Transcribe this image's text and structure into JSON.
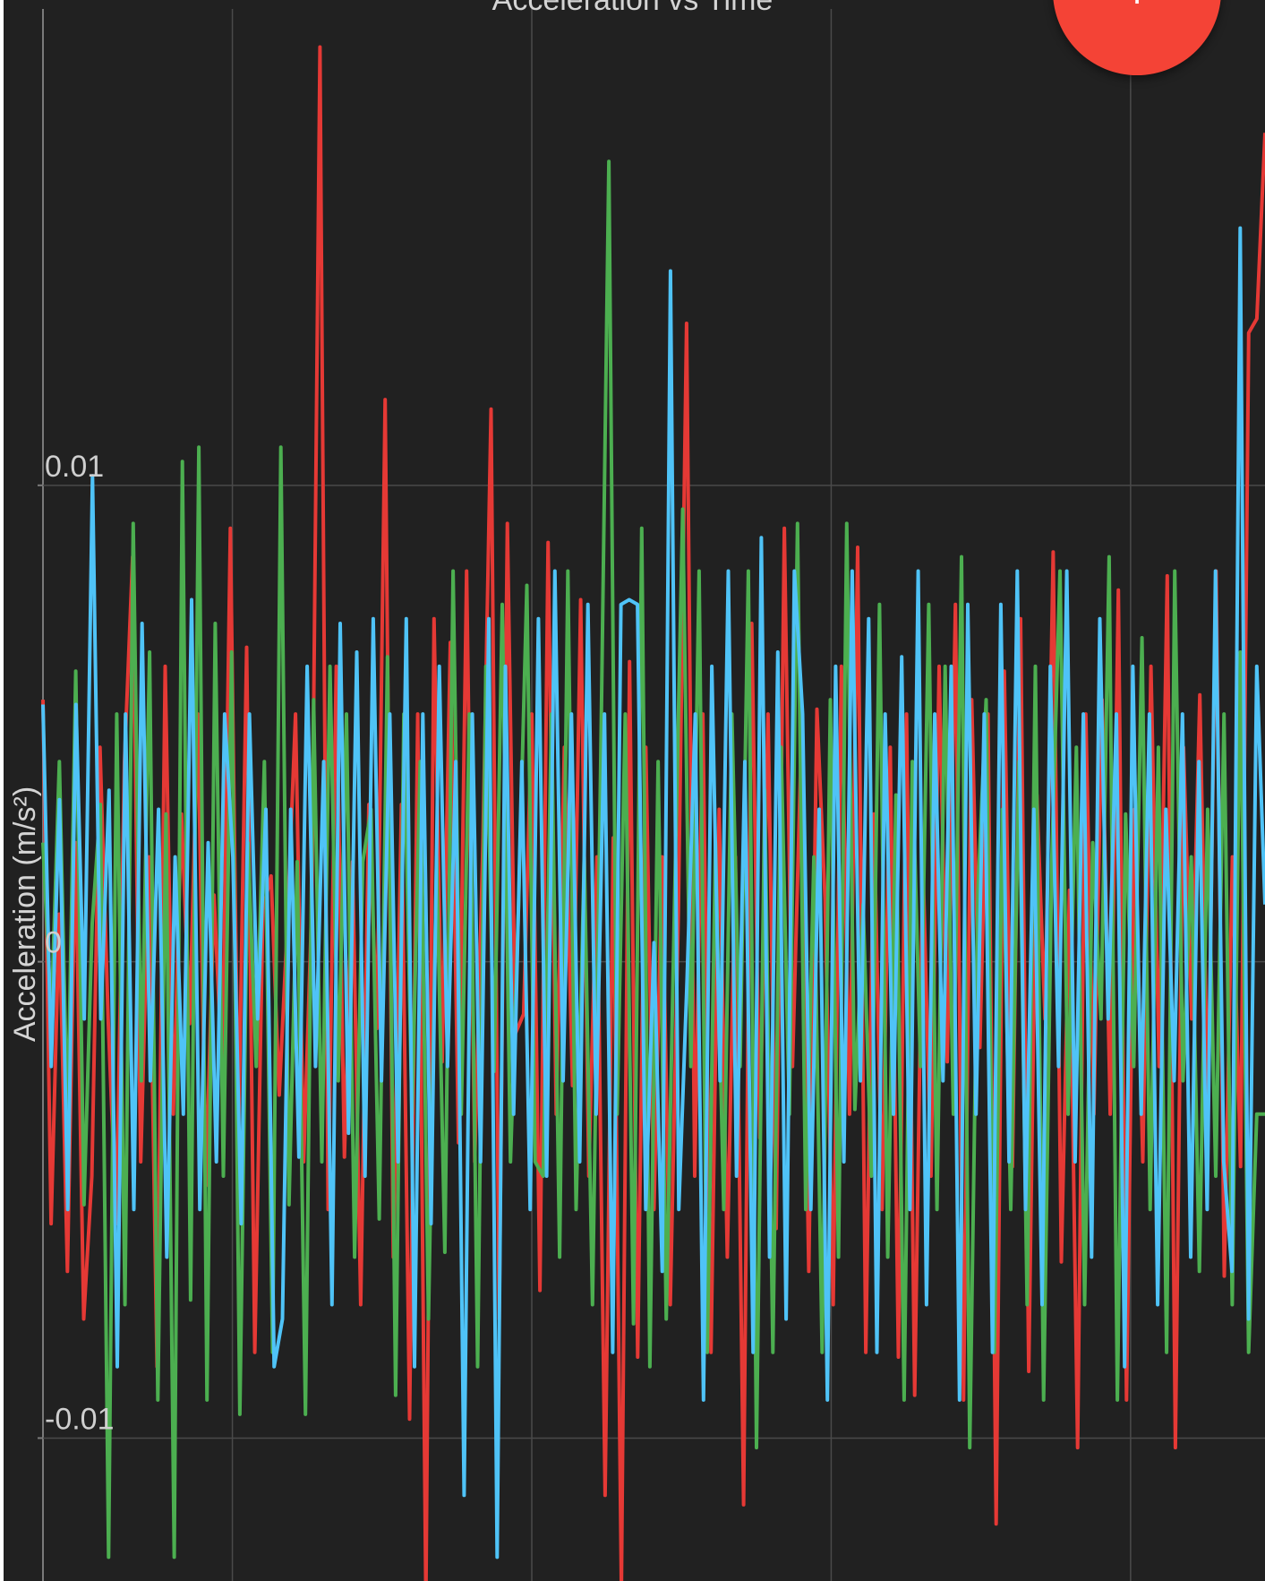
{
  "fab": {
    "icon": "add-icon",
    "label": "+",
    "color": "#f44336"
  },
  "chart_data": {
    "type": "line",
    "title": "Acceleration vs Time",
    "xlabel": "",
    "ylabel": "Acceleration (m/s²)",
    "ylim": [
      -0.013,
      0.02
    ],
    "yticks": [
      {
        "value": 0.01,
        "label": "0.01"
      },
      {
        "value": 0,
        "label": "0"
      },
      {
        "value": -0.01,
        "label": "-0.01"
      }
    ],
    "xgrid": [
      0,
      0.155,
      0.4,
      0.645,
      0.89
    ],
    "grid": true,
    "legend": "none",
    "background": "#212121",
    "series": [
      {
        "color": "#e53935",
        "values": [
          0.0055,
          -0.0055,
          0.001,
          -0.0065,
          0.0025,
          -0.0075,
          -0.0045,
          0.0045,
          -0.0012,
          -0.0055,
          0.0042,
          0.0085,
          -0.0042,
          0.0022,
          -0.0085,
          0.0062,
          -0.0032,
          0.0031,
          -0.0013,
          0.0052,
          -0.0047,
          0.0014,
          -0.0024,
          0.0091,
          -0.0037,
          0.0066,
          -0.0082,
          0.0011,
          0.0018,
          -0.0028,
          0.0008,
          0.0052,
          -0.0042,
          0.0012,
          0.0192,
          -0.0052,
          0.0062,
          -0.0041,
          0.0021,
          -0.0072,
          0.0033,
          -0.0014,
          0.0118,
          -0.0062,
          0.0033,
          -0.0096,
          0.0052,
          -0.0134,
          0.0072,
          -0.0021,
          0.0067,
          -0.0038,
          0.0082,
          -0.0042,
          0.0025,
          0.0116,
          -0.0075,
          0.0092,
          -0.0015,
          -0.0011,
          0.0052,
          -0.0069,
          0.0088,
          -0.0032,
          0.0045,
          -0.0026,
          0.0076,
          -0.0045,
          0.0022,
          -0.0112,
          0.0026,
          -0.0132,
          0.0063,
          -0.0083,
          0.0045,
          -0.0052,
          0.0022,
          -0.0072,
          0.0011,
          0.0134,
          -0.0045,
          0.0052,
          -0.0082,
          0.0032,
          -0.0062,
          0.0022,
          -0.0114,
          0.0071,
          -0.0037,
          0.0052,
          -0.0056,
          0.0091,
          -0.0022,
          0.0041,
          -0.0065,
          0.0053,
          0.0013,
          -0.0072,
          0.0062,
          -0.0032,
          0.0087,
          -0.0082,
          0.0031,
          -0.0052,
          0.0045,
          -0.0083,
          0.0052,
          -0.0091,
          0.0022,
          -0.0045,
          0.0062,
          -0.0021,
          0.0075,
          -0.0092,
          0.0055,
          -0.0018,
          0.0052,
          -0.0118,
          0.0061,
          -0.0043,
          0.0072,
          -0.0086,
          0.0035,
          -0.0012,
          0.0086,
          -0.0063,
          0.0015,
          -0.0102,
          0.0052,
          -0.0032,
          0.0055,
          -0.0032,
          0.0078,
          -0.0092,
          0.0032,
          -0.0042,
          0.0062,
          -0.0022,
          0.0081,
          -0.0102,
          0.0045,
          -0.0012,
          0.0056,
          -0.0032,
          0.0082,
          -0.0066,
          0.0022,
          -0.0043,
          0.0132,
          0.0135,
          0.0174
        ]
      },
      {
        "color": "#4caf50",
        "values": [
          0.0025,
          -0.0012,
          0.0042,
          -0.0035,
          0.0061,
          -0.0051,
          0.0008,
          0.0033,
          -0.0125,
          0.0052,
          -0.0072,
          0.0092,
          -0.0025,
          0.0065,
          -0.0092,
          0.0031,
          -0.0125,
          0.0105,
          -0.0071,
          0.0108,
          -0.0092,
          0.0071,
          -0.0045,
          0.0065,
          -0.0095,
          0.0025,
          -0.0022,
          0.0042,
          -0.0082,
          0.0108,
          -0.0051,
          0.0021,
          -0.0095,
          0.0055,
          -0.0042,
          0.0062,
          -0.0025,
          0.0052,
          -0.0062,
          0.0021,
          0.0032,
          -0.0054,
          0.0064,
          -0.0091,
          0.0052,
          -0.0032,
          0.0042,
          -0.0075,
          0.0022,
          -0.0061,
          0.0082,
          -0.0032,
          0.0052,
          -0.0085,
          0.0062,
          -0.0023,
          0.0075,
          -0.0042,
          0.0012,
          0.0079,
          -0.0042,
          -0.0045,
          0.0052,
          -0.0062,
          0.0082,
          -0.0052,
          0.0022,
          -0.0072,
          0.0042,
          0.0168,
          -0.0032,
          0.0052,
          -0.0076,
          0.0091,
          -0.0085,
          0.0042,
          -0.0075,
          0.0012,
          0.0095,
          -0.0022,
          0.0082,
          -0.0082,
          0.0025,
          -0.0052,
          0.0052,
          -0.0022,
          0.0082,
          -0.0102,
          0.0036,
          -0.0082,
          0.0045,
          -0.0032,
          0.0092,
          -0.0052,
          0.0022,
          -0.0082,
          0.0055,
          -0.0062,
          0.0092,
          -0.0031,
          0.0012,
          -0.0045,
          0.0075,
          -0.0062,
          0.0035,
          -0.0092,
          0.0042,
          -0.0022,
          0.0075,
          -0.0052,
          0.0062,
          -0.0032,
          0.0085,
          -0.0102,
          0.0015,
          0.0055,
          -0.0082,
          0.0032,
          -0.0052,
          0.0042,
          -0.0072,
          0.0062,
          -0.0092,
          0.0021,
          0.0082,
          -0.0032,
          0.0045,
          -0.0072,
          0.0025,
          -0.0012,
          0.0085,
          -0.0092,
          0.0031,
          -0.0022,
          0.0068,
          -0.0052,
          0.0045,
          -0.0082,
          0.0082,
          -0.0025,
          0.0022,
          -0.0065,
          0.0032,
          -0.0045,
          0.0052,
          -0.0072,
          0.0065,
          -0.0082,
          -0.0032,
          -0.0032
        ]
      },
      {
        "color": "#4fc3f7",
        "values": [
          0.0054,
          -0.0022,
          0.0034,
          -0.0052,
          0.0054,
          -0.0012,
          0.0102,
          -0.0012,
          0.0036,
          -0.0085,
          0.0052,
          -0.0052,
          0.0071,
          -0.0025,
          0.0032,
          -0.0062,
          0.0022,
          -0.0032,
          0.0076,
          -0.0052,
          0.0025,
          -0.0042,
          0.0052,
          0.0022,
          -0.0055,
          0.0052,
          -0.0012,
          0.0032,
          -0.0085,
          -0.0075,
          0.0032,
          -0.0041,
          0.0062,
          -0.0022,
          0.0042,
          -0.0072,
          0.0071,
          -0.0036,
          0.0065,
          -0.0045,
          0.0072,
          -0.0025,
          0.0052,
          -0.0042,
          0.0072,
          -0.0085,
          0.0052,
          -0.0055,
          0.0062,
          -0.0022,
          0.0042,
          -0.0112,
          0.0052,
          -0.0042,
          0.0072,
          -0.0125,
          0.0062,
          -0.0032,
          0.0042,
          -0.0052,
          0.0072,
          -0.0045,
          0.0082,
          -0.0025,
          0.0052,
          -0.0042,
          0.0075,
          -0.0032,
          0.0052,
          -0.0082,
          0.0075,
          0.0076,
          0.0075,
          -0.0052,
          0.0004,
          -0.0065,
          0.0145,
          -0.0052,
          -0.0004,
          0.0052,
          -0.0092,
          0.0062,
          -0.0025,
          0.0082,
          -0.0045,
          0.0042,
          -0.0082,
          0.0089,
          -0.0062,
          0.0065,
          -0.0075,
          0.0082,
          0.0052,
          -0.0052,
          0.0032,
          -0.0092,
          0.0062,
          -0.0042,
          0.0082,
          -0.0025,
          0.0072,
          -0.0082,
          0.0052,
          -0.0032,
          0.0064,
          -0.0052,
          0.0082,
          -0.0072,
          0.0052,
          -0.0025,
          0.0062,
          -0.0092,
          0.0075,
          -0.0032,
          0.0052,
          -0.0082,
          0.0075,
          -0.0042,
          0.0082,
          -0.0052,
          0.0032,
          -0.0072,
          0.0062,
          -0.0022,
          0.0082,
          -0.0042,
          0.0052,
          -0.0062,
          0.0072,
          -0.0012,
          0.0052,
          -0.0085,
          0.0062,
          -0.0032,
          0.0052,
          -0.0072,
          0.0032,
          -0.0025,
          0.0052,
          -0.0062,
          0.0042,
          -0.0052,
          0.0082,
          -0.0042,
          -0.0065,
          0.0154,
          -0.0075,
          0.0062,
          0.0012
        ]
      }
    ]
  }
}
